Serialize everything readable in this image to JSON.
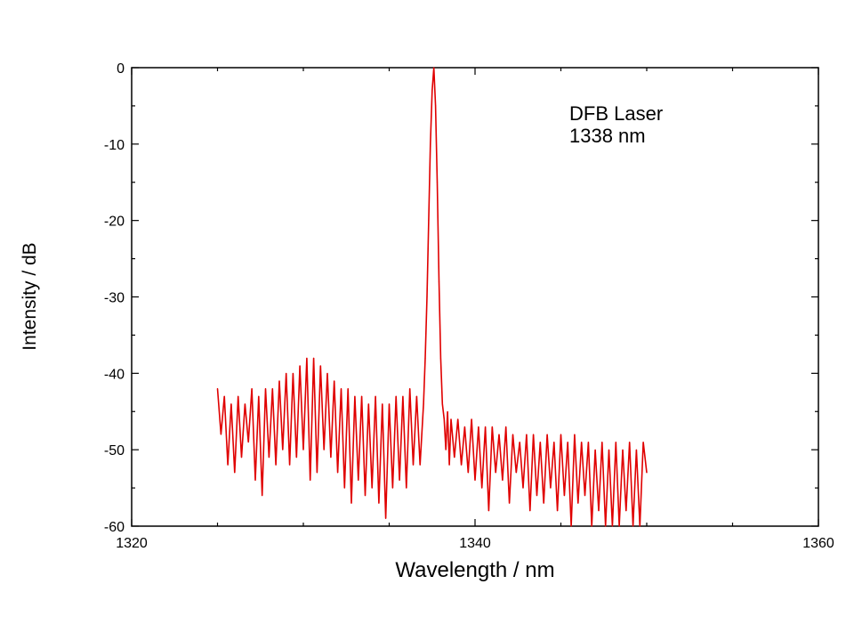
{
  "chart_data": {
    "type": "line",
    "title": "",
    "xlabel": "Wavelength / nm",
    "ylabel": "Intensity / dB",
    "xlim": [
      1320,
      1360
    ],
    "ylim": [
      -60,
      0
    ],
    "x_ticks": [
      "1320",
      "1340",
      "1360"
    ],
    "y_ticks": [
      "0",
      "-10",
      "-20",
      "-30",
      "-40",
      "-50",
      "-60"
    ],
    "annotation": [
      "DFB Laser",
      "1338 nm"
    ],
    "grid": false,
    "legend": "none",
    "series_color": "#e00000",
    "series": [
      {
        "x": [
          1325.0,
          1325.2,
          1325.4,
          1325.6,
          1325.8,
          1326.0,
          1326.2,
          1326.4,
          1326.6,
          1326.8,
          1327.0,
          1327.2,
          1327.4,
          1327.6,
          1327.8,
          1328.0,
          1328.2,
          1328.4,
          1328.6,
          1328.8,
          1329.0,
          1329.2,
          1329.4,
          1329.6,
          1329.8,
          1330.0,
          1330.2,
          1330.4,
          1330.6,
          1330.8,
          1331.0,
          1331.2,
          1331.4,
          1331.6,
          1331.8,
          1332.0,
          1332.2,
          1332.4,
          1332.6,
          1332.8,
          1333.0,
          1333.2,
          1333.4,
          1333.6,
          1333.8,
          1334.0,
          1334.2,
          1334.4,
          1334.6,
          1334.8,
          1335.0,
          1335.2,
          1335.4,
          1335.6,
          1335.8,
          1336.0,
          1336.2,
          1336.4,
          1336.6,
          1336.8,
          1337.0,
          1337.1,
          1337.2,
          1337.3,
          1337.4,
          1337.5,
          1337.6,
          1337.7,
          1337.8,
          1337.9,
          1338.0,
          1338.1,
          1338.2,
          1338.3,
          1338.4,
          1338.5,
          1338.6,
          1338.8,
          1339.0,
          1339.2,
          1339.4,
          1339.6,
          1339.8,
          1340.0,
          1340.2,
          1340.4,
          1340.6,
          1340.8,
          1341.0,
          1341.2,
          1341.4,
          1341.6,
          1341.8,
          1342.0,
          1342.2,
          1342.4,
          1342.6,
          1342.8,
          1343.0,
          1343.2,
          1343.4,
          1343.6,
          1343.8,
          1344.0,
          1344.2,
          1344.4,
          1344.6,
          1344.8,
          1345.0,
          1345.2,
          1345.4,
          1345.6,
          1345.8,
          1346.0,
          1346.2,
          1346.4,
          1346.6,
          1346.8,
          1347.0,
          1347.2,
          1347.4,
          1347.6,
          1347.8,
          1348.0,
          1348.2,
          1348.4,
          1348.6,
          1348.8,
          1349.0,
          1349.2,
          1349.4,
          1349.6,
          1349.8,
          1350.0
        ],
        "y": [
          -42,
          -48,
          -43,
          -52,
          -44,
          -53,
          -43,
          -51,
          -44,
          -49,
          -42,
          -54,
          -43,
          -56,
          -42,
          -51,
          -42,
          -52,
          -41,
          -50,
          -40,
          -52,
          -40,
          -51,
          -39,
          -50,
          -38,
          -54,
          -38,
          -53,
          -39,
          -50,
          -40,
          -51,
          -41,
          -53,
          -42,
          -55,
          -42,
          -57,
          -43,
          -54,
          -43,
          -56,
          -44,
          -55,
          -43,
          -57,
          -44,
          -59,
          -44,
          -55,
          -43,
          -54,
          -43,
          -55,
          -42,
          -52,
          -43,
          -52,
          -44,
          -38,
          -30,
          -20,
          -10,
          -3,
          0,
          -5,
          -15,
          -28,
          -38,
          -44,
          -46,
          -50,
          -45,
          -52,
          -46,
          -51,
          -46,
          -52,
          -47,
          -53,
          -46,
          -54,
          -47,
          -55,
          -47,
          -58,
          -47,
          -53,
          -48,
          -54,
          -47,
          -57,
          -48,
          -53,
          -49,
          -55,
          -48,
          -58,
          -48,
          -56,
          -49,
          -57,
          -48,
          -55,
          -49,
          -58,
          -48,
          -56,
          -49,
          -60,
          -48,
          -57,
          -49,
          -56,
          -49,
          -60,
          -50,
          -58,
          -49,
          -60,
          -50,
          -60,
          -49,
          -60,
          -50,
          -58,
          -49,
          -60,
          -50,
          -60,
          -49,
          -53
        ]
      }
    ]
  }
}
